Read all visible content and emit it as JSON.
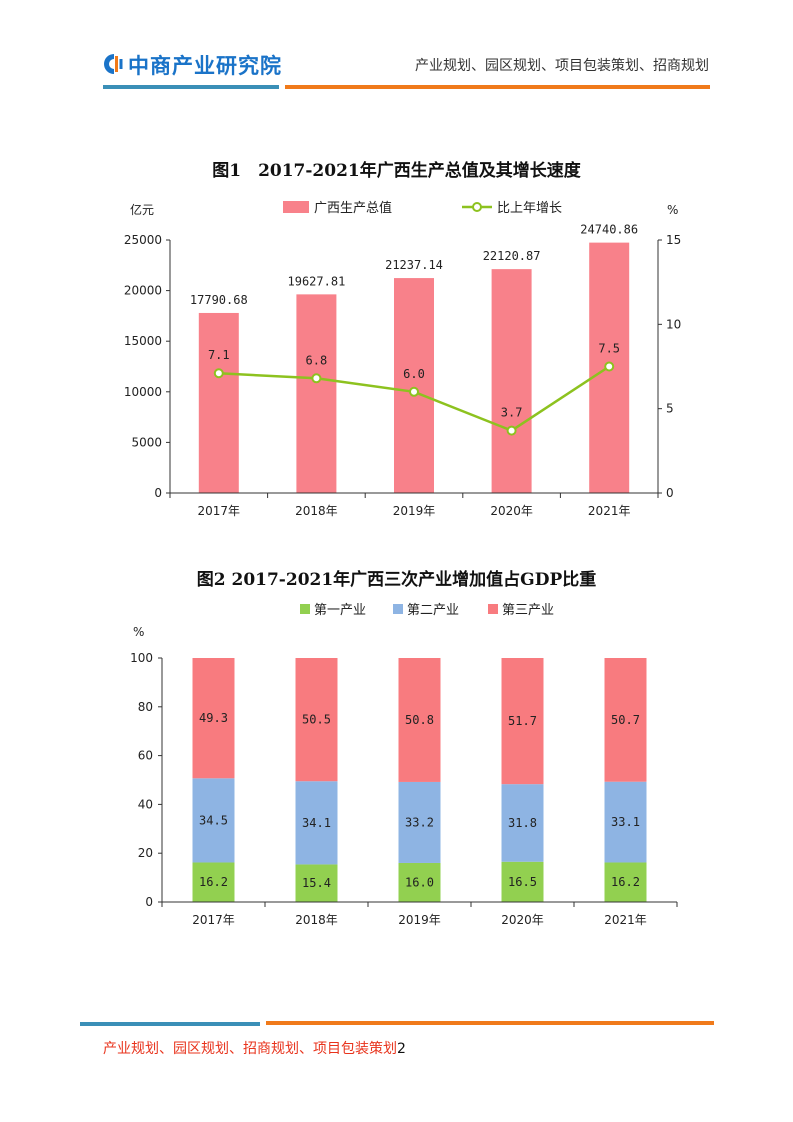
{
  "header": {
    "logo_text": "中商产业研究院",
    "slogan": "产业规划、园区规划、项目包装策划、招商规划"
  },
  "colors": {
    "blue_rule": "#3a8fb7",
    "orange_rule": "#f07a1a",
    "bar_red": "#f8818a",
    "line_green": "#8dc21f",
    "primary_green": "#92d050",
    "secondary_blue": "#8eb4e3",
    "tertiary_red": "#f87b7f"
  },
  "fig1": {
    "title": "图1　2017-2021年广西生产总值及其增长速度",
    "chart_data": {
      "type": "bar",
      "categories": [
        "2017年",
        "2018年",
        "2019年",
        "2020年",
        "2021年"
      ],
      "series": [
        {
          "name": "广西生产总值",
          "type": "bar",
          "axis": "left",
          "values": [
            17790.68,
            19627.81,
            21237.14,
            22120.87,
            24740.86
          ],
          "labels": [
            "17790.68",
            "19627.81",
            "21237.14",
            "22120.87",
            "24740.86"
          ]
        },
        {
          "name": "比上年增长",
          "type": "line",
          "axis": "right",
          "values": [
            7.1,
            6.8,
            6.0,
            3.7,
            7.5
          ],
          "labels": [
            "7.1",
            "6.8",
            "6.0",
            "3.7",
            "7.5"
          ]
        }
      ],
      "left_axis": {
        "label": "亿元",
        "range": [
          0,
          25000
        ],
        "ticks": [
          "0",
          "5000",
          "10000",
          "15000",
          "20000",
          "25000"
        ]
      },
      "right_axis": {
        "label": "%",
        "range": [
          0,
          15
        ],
        "ticks": [
          "0",
          "5",
          "10",
          "15"
        ]
      },
      "legend_position": "top"
    }
  },
  "fig2": {
    "title": "图2 2017-2021年广西三次产业增加值占GDP比重",
    "chart_data": {
      "type": "bar",
      "stacked": true,
      "categories": [
        "2017年",
        "2018年",
        "2019年",
        "2020年",
        "2021年"
      ],
      "series": [
        {
          "name": "第一产业",
          "values": [
            16.2,
            15.4,
            16.0,
            16.5,
            16.2
          ],
          "labels": [
            "16.2",
            "15.4",
            "16.0",
            "16.5",
            "16.2"
          ]
        },
        {
          "name": "第二产业",
          "values": [
            34.5,
            34.1,
            33.2,
            31.8,
            33.1
          ],
          "labels": [
            "34.5",
            "34.1",
            "33.2",
            "31.8",
            "33.1"
          ]
        },
        {
          "name": "第三产业",
          "values": [
            49.3,
            50.5,
            50.8,
            51.7,
            50.7
          ],
          "labels": [
            "49.3",
            "50.5",
            "50.8",
            "51.7",
            "50.7"
          ]
        }
      ],
      "y_axis": {
        "label": "%",
        "range": [
          0,
          100
        ],
        "ticks": [
          "0",
          "20",
          "40",
          "60",
          "80",
          "100"
        ]
      },
      "legend_position": "top"
    }
  },
  "footer": {
    "text": "产业规划、园区规划、招商规划、项目包装策划",
    "page_number": "2"
  }
}
